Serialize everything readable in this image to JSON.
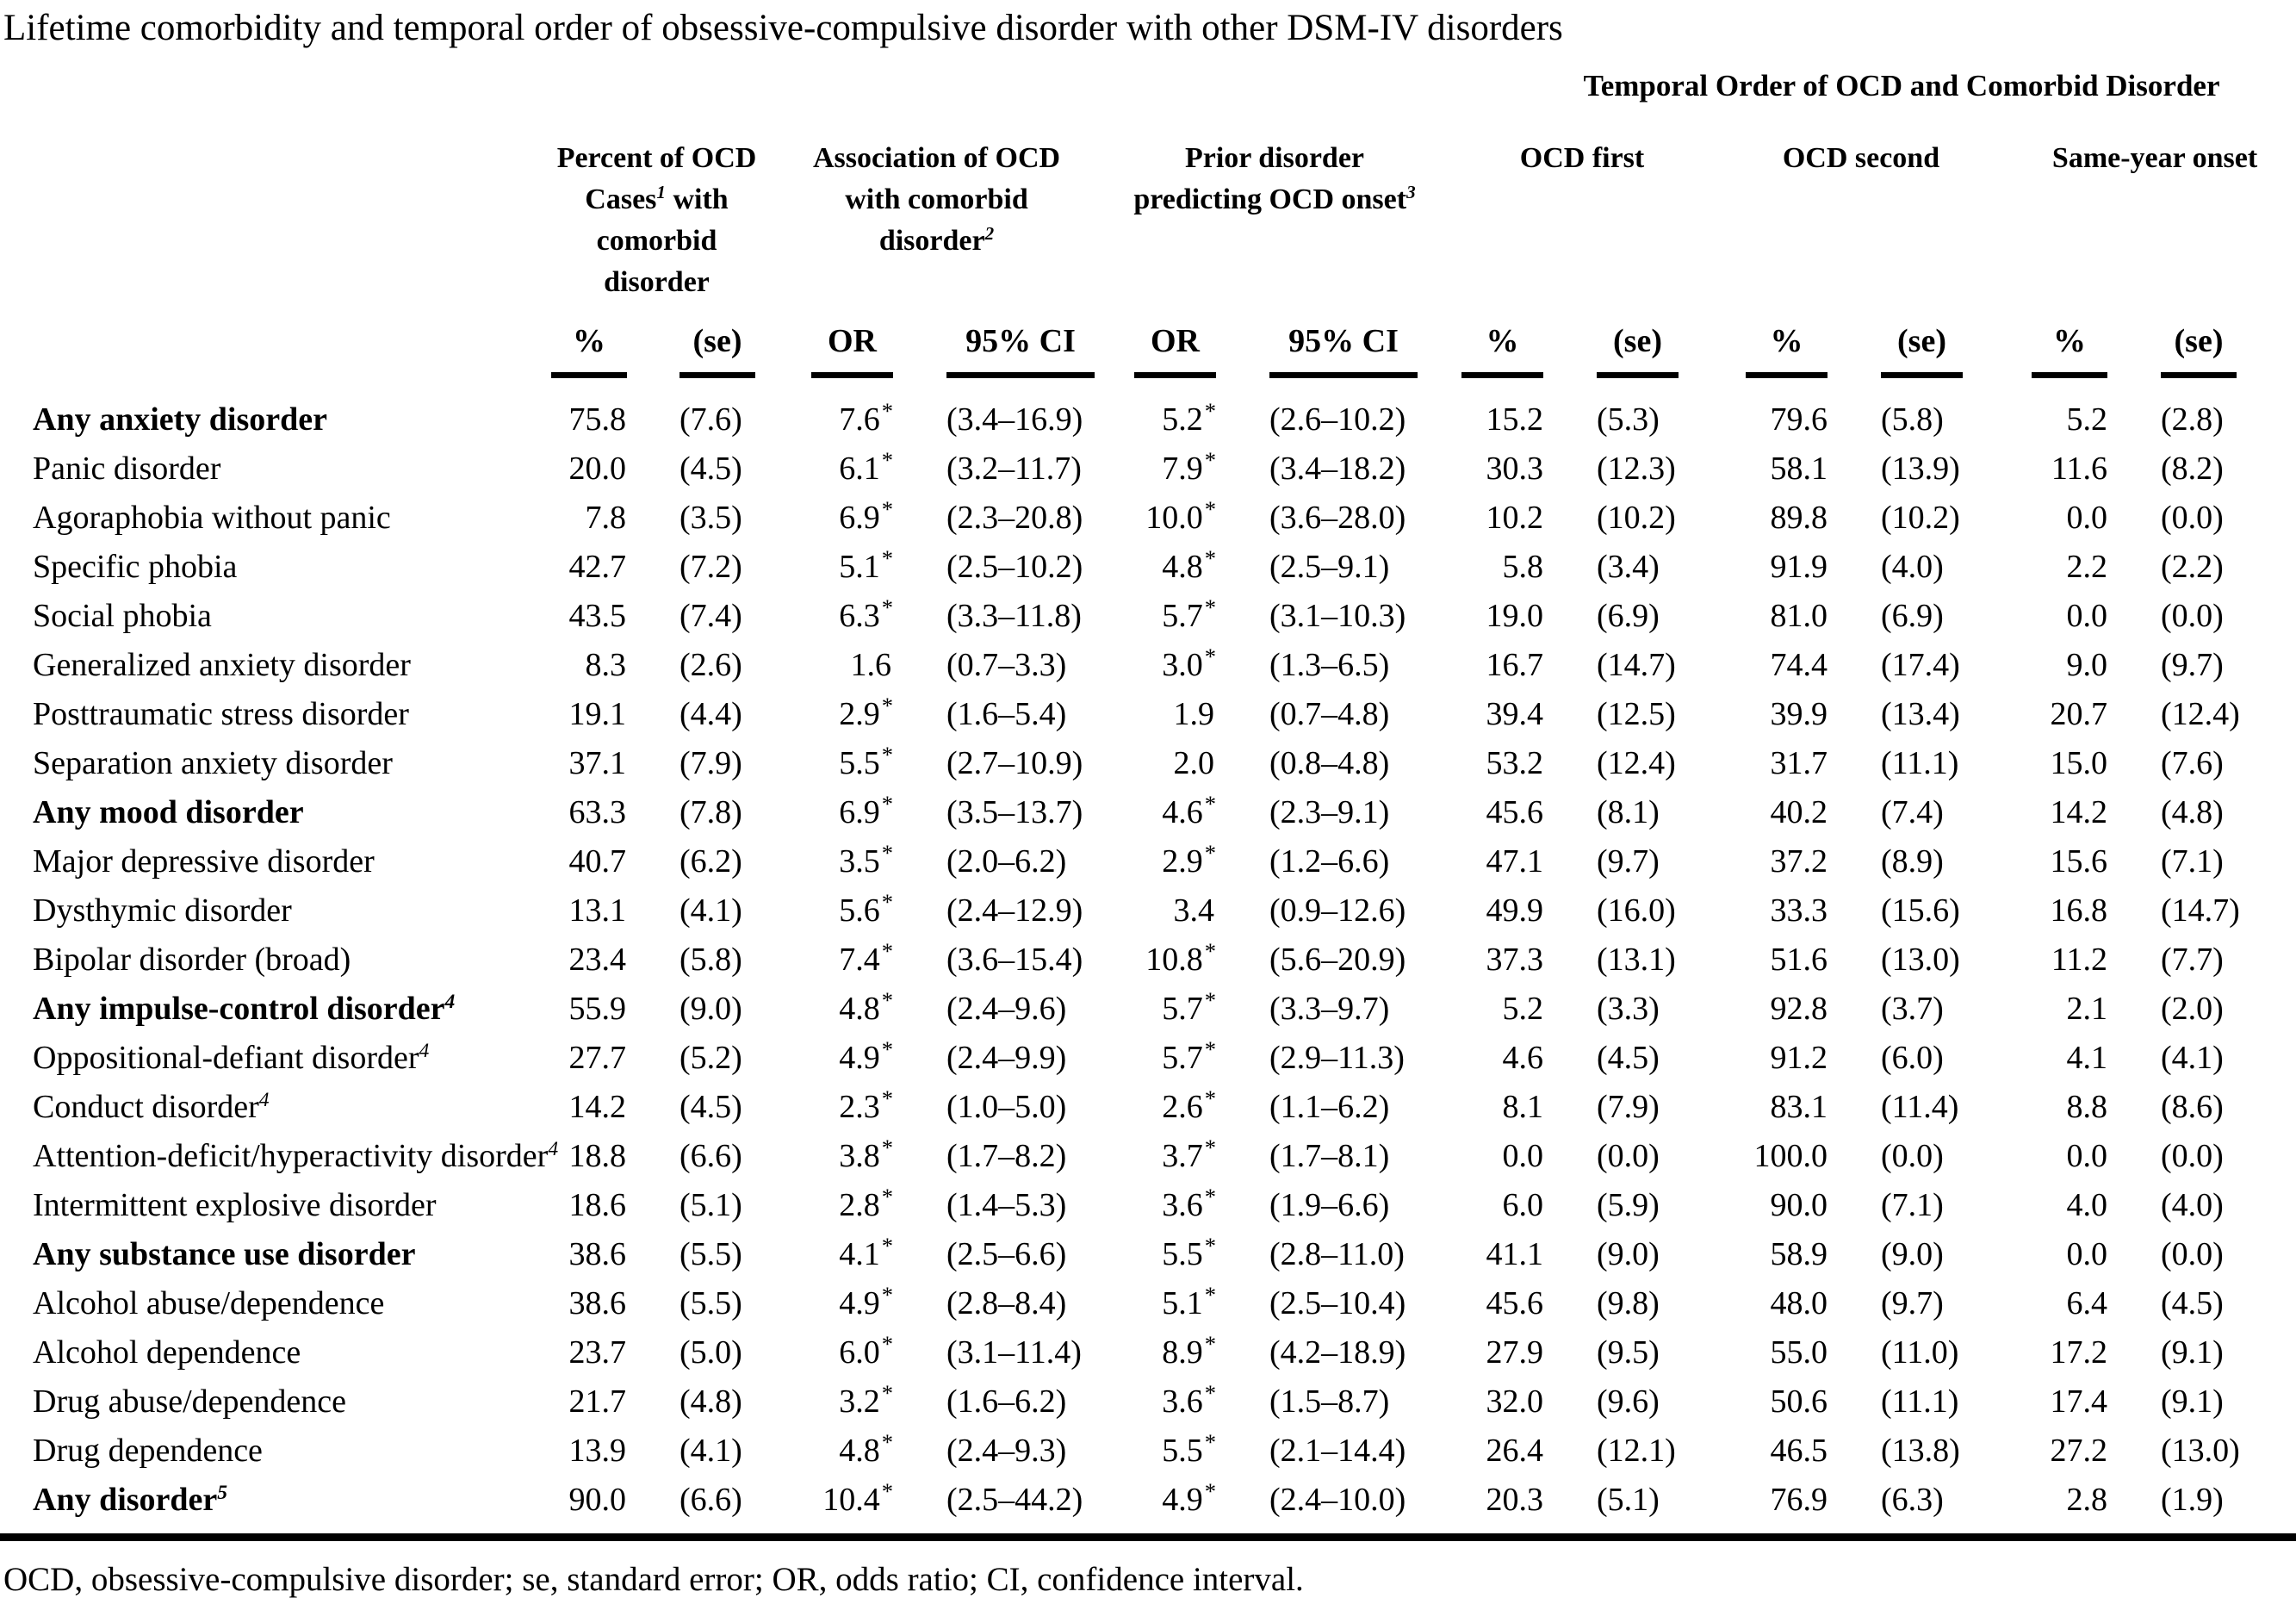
{
  "title": "Lifetime comorbidity and temporal order of obsessive-compulsive disorder with other DSM-IV disorders",
  "footnote": "OCD, obsessive-compulsive disorder; se, standard error; OR, odds ratio; CI, confidence interval.",
  "colors": {
    "text": "#000000",
    "background": "#ffffff",
    "rules": "#000000"
  },
  "headers": {
    "temporal_spanner": "Temporal Order of OCD and Comorbid Disorder",
    "groups": [
      {
        "pre": "Percent of OCD Cases",
        "sup": "1",
        "post": " with comorbid disorder"
      },
      {
        "pre": "Association of OCD with comorbid disorder",
        "sup": "2",
        "post": ""
      },
      {
        "pre": "Prior disorder predicting OCD onset",
        "sup": "3",
        "post": ""
      },
      {
        "pre": "OCD first",
        "sup": "",
        "post": ""
      },
      {
        "pre": "OCD second",
        "sup": "",
        "post": ""
      },
      {
        "pre": "Same-year onset",
        "sup": "",
        "post": ""
      }
    ],
    "sub": [
      "%",
      "(se)",
      "OR",
      "95% CI",
      "OR",
      "95% CI",
      "%",
      "(se)",
      "%",
      "(se)",
      "%",
      "(se)"
    ]
  },
  "rows": [
    {
      "label": "Any anxiety disorder",
      "label_sup": "",
      "bold": true,
      "pct": "75.8",
      "pct_se": "(7.6)",
      "or1": "7.6",
      "or1_star": "*",
      "ci1": "(3.4–16.9)",
      "or2": "5.2",
      "or2_star": "*",
      "ci2": "(2.6–10.2)",
      "first_pct": "15.2",
      "first_se": "(5.3)",
      "second_pct": "79.6",
      "second_se": "(5.8)",
      "same_pct": "5.2",
      "same_se": "(2.8)"
    },
    {
      "label": "Panic disorder",
      "label_sup": "",
      "bold": false,
      "pct": "20.0",
      "pct_se": "(4.5)",
      "or1": "6.1",
      "or1_star": "*",
      "ci1": "(3.2–11.7)",
      "or2": "7.9",
      "or2_star": "*",
      "ci2": "(3.4–18.2)",
      "first_pct": "30.3",
      "first_se": "(12.3)",
      "second_pct": "58.1",
      "second_se": "(13.9)",
      "same_pct": "11.6",
      "same_se": "(8.2)"
    },
    {
      "label": "Agoraphobia without panic",
      "label_sup": "",
      "bold": false,
      "pct": "7.8",
      "pct_se": "(3.5)",
      "or1": "6.9",
      "or1_star": "*",
      "ci1": "(2.3–20.8)",
      "or2": "10.0",
      "or2_star": "*",
      "ci2": "(3.6–28.0)",
      "first_pct": "10.2",
      "first_se": "(10.2)",
      "second_pct": "89.8",
      "second_se": "(10.2)",
      "same_pct": "0.0",
      "same_se": "(0.0)"
    },
    {
      "label": "Specific phobia",
      "label_sup": "",
      "bold": false,
      "pct": "42.7",
      "pct_se": "(7.2)",
      "or1": "5.1",
      "or1_star": "*",
      "ci1": "(2.5–10.2)",
      "or2": "4.8",
      "or2_star": "*",
      "ci2": "(2.5–9.1)",
      "first_pct": "5.8",
      "first_se": "(3.4)",
      "second_pct": "91.9",
      "second_se": "(4.0)",
      "same_pct": "2.2",
      "same_se": "(2.2)"
    },
    {
      "label": "Social phobia",
      "label_sup": "",
      "bold": false,
      "pct": "43.5",
      "pct_se": "(7.4)",
      "or1": "6.3",
      "or1_star": "*",
      "ci1": "(3.3–11.8)",
      "or2": "5.7",
      "or2_star": "*",
      "ci2": "(3.1–10.3)",
      "first_pct": "19.0",
      "first_se": "(6.9)",
      "second_pct": "81.0",
      "second_se": "(6.9)",
      "same_pct": "0.0",
      "same_se": "(0.0)"
    },
    {
      "label": "Generalized anxiety disorder",
      "label_sup": "",
      "bold": false,
      "pct": "8.3",
      "pct_se": "(2.6)",
      "or1": "1.6",
      "or1_star": "",
      "ci1": "(0.7–3.3)",
      "or2": "3.0",
      "or2_star": "*",
      "ci2": "(1.3–6.5)",
      "first_pct": "16.7",
      "first_se": "(14.7)",
      "second_pct": "74.4",
      "second_se": "(17.4)",
      "same_pct": "9.0",
      "same_se": "(9.7)"
    },
    {
      "label": "Posttraumatic stress disorder",
      "label_sup": "",
      "bold": false,
      "pct": "19.1",
      "pct_se": "(4.4)",
      "or1": "2.9",
      "or1_star": "*",
      "ci1": "(1.6–5.4)",
      "or2": "1.9",
      "or2_star": "",
      "ci2": "(0.7–4.8)",
      "first_pct": "39.4",
      "first_se": "(12.5)",
      "second_pct": "39.9",
      "second_se": "(13.4)",
      "same_pct": "20.7",
      "same_se": "(12.4)"
    },
    {
      "label": "Separation anxiety disorder",
      "label_sup": "",
      "bold": false,
      "pct": "37.1",
      "pct_se": "(7.9)",
      "or1": "5.5",
      "or1_star": "*",
      "ci1": "(2.7–10.9)",
      "or2": "2.0",
      "or2_star": "",
      "ci2": "(0.8–4.8)",
      "first_pct": "53.2",
      "first_se": "(12.4)",
      "second_pct": "31.7",
      "second_se": "(11.1)",
      "same_pct": "15.0",
      "same_se": "(7.6)"
    },
    {
      "label": "Any mood disorder",
      "label_sup": "",
      "bold": true,
      "pct": "63.3",
      "pct_se": "(7.8)",
      "or1": "6.9",
      "or1_star": "*",
      "ci1": "(3.5–13.7)",
      "or2": "4.6",
      "or2_star": "*",
      "ci2": "(2.3–9.1)",
      "first_pct": "45.6",
      "first_se": "(8.1)",
      "second_pct": "40.2",
      "second_se": "(7.4)",
      "same_pct": "14.2",
      "same_se": "(4.8)"
    },
    {
      "label": "Major depressive disorder",
      "label_sup": "",
      "bold": false,
      "pct": "40.7",
      "pct_se": "(6.2)",
      "or1": "3.5",
      "or1_star": "*",
      "ci1": "(2.0–6.2)",
      "or2": "2.9",
      "or2_star": "*",
      "ci2": "(1.2–6.6)",
      "first_pct": "47.1",
      "first_se": "(9.7)",
      "second_pct": "37.2",
      "second_se": "(8.9)",
      "same_pct": "15.6",
      "same_se": "(7.1)"
    },
    {
      "label": "Dysthymic disorder",
      "label_sup": "",
      "bold": false,
      "pct": "13.1",
      "pct_se": "(4.1)",
      "or1": "5.6",
      "or1_star": "*",
      "ci1": "(2.4–12.9)",
      "or2": "3.4",
      "or2_star": "",
      "ci2": "(0.9–12.6)",
      "first_pct": "49.9",
      "first_se": "(16.0)",
      "second_pct": "33.3",
      "second_se": "(15.6)",
      "same_pct": "16.8",
      "same_se": "(14.7)"
    },
    {
      "label": "Bipolar disorder (broad)",
      "label_sup": "",
      "bold": false,
      "pct": "23.4",
      "pct_se": "(5.8)",
      "or1": "7.4",
      "or1_star": "*",
      "ci1": "(3.6–15.4)",
      "or2": "10.8",
      "or2_star": "*",
      "ci2": "(5.6–20.9)",
      "first_pct": "37.3",
      "first_se": "(13.1)",
      "second_pct": "51.6",
      "second_se": "(13.0)",
      "same_pct": "11.2",
      "same_se": "(7.7)"
    },
    {
      "label": "Any impulse-control disorder",
      "label_sup": "4",
      "bold": true,
      "pct": "55.9",
      "pct_se": "(9.0)",
      "or1": "4.8",
      "or1_star": "*",
      "ci1": "(2.4–9.6)",
      "or2": "5.7",
      "or2_star": "*",
      "ci2": "(3.3–9.7)",
      "first_pct": "5.2",
      "first_se": "(3.3)",
      "second_pct": "92.8",
      "second_se": "(3.7)",
      "same_pct": "2.1",
      "same_se": "(2.0)"
    },
    {
      "label": "Oppositional-defiant disorder",
      "label_sup": "4",
      "bold": false,
      "pct": "27.7",
      "pct_se": "(5.2)",
      "or1": "4.9",
      "or1_star": "*",
      "ci1": "(2.4–9.9)",
      "or2": "5.7",
      "or2_star": "*",
      "ci2": "(2.9–11.3)",
      "first_pct": "4.6",
      "first_se": "(4.5)",
      "second_pct": "91.2",
      "second_se": "(6.0)",
      "same_pct": "4.1",
      "same_se": "(4.1)"
    },
    {
      "label": "Conduct disorder",
      "label_sup": "4",
      "bold": false,
      "pct": "14.2",
      "pct_se": "(4.5)",
      "or1": "2.3",
      "or1_star": "*",
      "ci1": "(1.0–5.0)",
      "or2": "2.6",
      "or2_star": "*",
      "ci2": "(1.1–6.2)",
      "first_pct": "8.1",
      "first_se": "(7.9)",
      "second_pct": "83.1",
      "second_se": "(11.4)",
      "same_pct": "8.8",
      "same_se": "(8.6)"
    },
    {
      "label": "Attention-deficit/hyperactivity disorder",
      "label_sup": "4",
      "bold": false,
      "pct": "18.8",
      "pct_se": "(6.6)",
      "or1": "3.8",
      "or1_star": "*",
      "ci1": "(1.7–8.2)",
      "or2": "3.7",
      "or2_star": "*",
      "ci2": "(1.7–8.1)",
      "first_pct": "0.0",
      "first_se": "(0.0)",
      "second_pct": "100.0",
      "second_se": "(0.0)",
      "same_pct": "0.0",
      "same_se": "(0.0)"
    },
    {
      "label": "Intermittent explosive disorder",
      "label_sup": "",
      "bold": false,
      "pct": "18.6",
      "pct_se": "(5.1)",
      "or1": "2.8",
      "or1_star": "*",
      "ci1": "(1.4–5.3)",
      "or2": "3.6",
      "or2_star": "*",
      "ci2": "(1.9–6.6)",
      "first_pct": "6.0",
      "first_se": "(5.9)",
      "second_pct": "90.0",
      "second_se": "(7.1)",
      "same_pct": "4.0",
      "same_se": "(4.0)"
    },
    {
      "label": "Any substance use disorder",
      "label_sup": "",
      "bold": true,
      "pct": "38.6",
      "pct_se": "(5.5)",
      "or1": "4.1",
      "or1_star": "*",
      "ci1": "(2.5–6.6)",
      "or2": "5.5",
      "or2_star": "*",
      "ci2": "(2.8–11.0)",
      "first_pct": "41.1",
      "first_se": "(9.0)",
      "second_pct": "58.9",
      "second_se": "(9.0)",
      "same_pct": "0.0",
      "same_se": "(0.0)"
    },
    {
      "label": "Alcohol abuse/dependence",
      "label_sup": "",
      "bold": false,
      "pct": "38.6",
      "pct_se": "(5.5)",
      "or1": "4.9",
      "or1_star": "*",
      "ci1": "(2.8–8.4)",
      "or2": "5.1",
      "or2_star": "*",
      "ci2": "(2.5–10.4)",
      "first_pct": "45.6",
      "first_se": "(9.8)",
      "second_pct": "48.0",
      "second_se": "(9.7)",
      "same_pct": "6.4",
      "same_se": "(4.5)"
    },
    {
      "label": "Alcohol dependence",
      "label_sup": "",
      "bold": false,
      "pct": "23.7",
      "pct_se": "(5.0)",
      "or1": "6.0",
      "or1_star": "*",
      "ci1": "(3.1–11.4)",
      "or2": "8.9",
      "or2_star": "*",
      "ci2": "(4.2–18.9)",
      "first_pct": "27.9",
      "first_se": "(9.5)",
      "second_pct": "55.0",
      "second_se": "(11.0)",
      "same_pct": "17.2",
      "same_se": "(9.1)"
    },
    {
      "label": "Drug abuse/dependence",
      "label_sup": "",
      "bold": false,
      "pct": "21.7",
      "pct_se": "(4.8)",
      "or1": "3.2",
      "or1_star": "*",
      "ci1": "(1.6–6.2)",
      "or2": "3.6",
      "or2_star": "*",
      "ci2": "(1.5–8.7)",
      "first_pct": "32.0",
      "first_se": "(9.6)",
      "second_pct": "50.6",
      "second_se": "(11.1)",
      "same_pct": "17.4",
      "same_se": "(9.1)"
    },
    {
      "label": "Drug dependence",
      "label_sup": "",
      "bold": false,
      "pct": "13.9",
      "pct_se": "(4.1)",
      "or1": "4.8",
      "or1_star": "*",
      "ci1": "(2.4–9.3)",
      "or2": "5.5",
      "or2_star": "*",
      "ci2": "(2.1–14.4)",
      "first_pct": "26.4",
      "first_se": "(12.1)",
      "second_pct": "46.5",
      "second_se": "(13.8)",
      "same_pct": "27.2",
      "same_se": "(13.0)"
    },
    {
      "label": "Any disorder",
      "label_sup": "5",
      "bold": true,
      "pct": "90.0",
      "pct_se": "(6.6)",
      "or1": "10.4",
      "or1_star": "*",
      "ci1": "(2.5–44.2)",
      "or2": "4.9",
      "or2_star": "*",
      "ci2": "(2.4–10.0)",
      "first_pct": "20.3",
      "first_se": "(5.1)",
      "second_pct": "76.9",
      "second_se": "(6.3)",
      "same_pct": "2.8",
      "same_se": "(1.9)"
    }
  ]
}
